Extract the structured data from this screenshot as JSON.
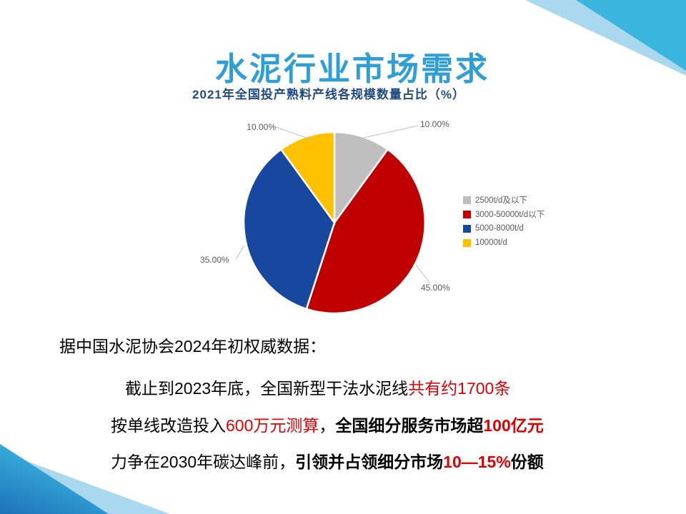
{
  "slide": {
    "title": "水泥行业市场需求"
  },
  "chart_data": {
    "type": "pie",
    "title": "2021年全国投产熟料产线各规模数量占比（%）",
    "legend_position": "right",
    "start_angle_deg": 0,
    "direction": "clockwise",
    "slices": [
      {
        "name": "2500t/d及以下",
        "value": 10.0,
        "label": "10.00%",
        "color": "#BFBFBF"
      },
      {
        "name": "3000-50000t/d以下",
        "value": 45.0,
        "label": "45.00%",
        "color": "#C00000"
      },
      {
        "name": "5000-8000t/d",
        "value": 35.0,
        "label": "35.00%",
        "color": "#17479E"
      },
      {
        "name": "10000t/d",
        "value": 10.0,
        "label": "10.00%",
        "color": "#FFC000"
      }
    ]
  },
  "body": {
    "lines": [
      {
        "segments": [
          {
            "text": "据中国水泥协会2024年初权威数据：",
            "color": "#000000",
            "bold": false
          }
        ]
      },
      {
        "segments": [
          {
            "text": "截止到2023年底，全国新型干法水泥线",
            "color": "#000000",
            "bold": false
          },
          {
            "text": "共有约1700条",
            "color": "#E00000",
            "bold": false
          }
        ]
      },
      {
        "segments": [
          {
            "text": "按单线改造投入",
            "color": "#000000",
            "bold": false
          },
          {
            "text": "600万元测算",
            "color": "#E00000",
            "bold": false
          },
          {
            "text": "，",
            "color": "#000000",
            "bold": false
          },
          {
            "text": "全国细分服务市场超",
            "color": "#000000",
            "bold": true
          },
          {
            "text": "100亿元",
            "color": "#E00000",
            "bold": true
          }
        ]
      },
      {
        "segments": [
          {
            "text": "力争在2030年碳达峰前，",
            "color": "#000000",
            "bold": false
          },
          {
            "text": "引领并占领细分市场",
            "color": "#000000",
            "bold": true
          },
          {
            "text": "10—15%",
            "color": "#E00000",
            "bold": true
          },
          {
            "text": "份额",
            "color": "#000000",
            "bold": true
          }
        ]
      }
    ]
  },
  "decor": {
    "accent_teal": "#3AB5DD",
    "accent_light": "#A9D8EF",
    "accent_deep": "#1E71B8",
    "title_color": "#2E9FD6",
    "chart_title_color": "#1F4B82",
    "leader_line_color": "#BFBFBF"
  }
}
